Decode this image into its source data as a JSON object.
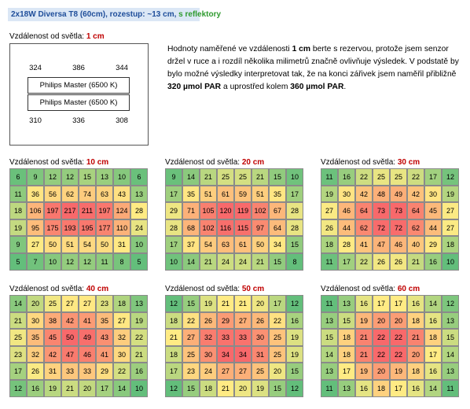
{
  "header": {
    "title": "2x18W Diversa T8 (60cm), rozestup: ~13 cm,",
    "title_tag": "s reflektory"
  },
  "diagram": {
    "label": "Vzdálenost od světla: ",
    "distance": "1 cm",
    "top": [
      324,
      386,
      344
    ],
    "lamps": [
      "Philips Master (6500 K)",
      "Philips Master (6500 K)"
    ],
    "bottom": [
      310,
      336,
      308
    ]
  },
  "note": {
    "parts": [
      {
        "text": "Hodnoty naměřené ve vzdálenosti ",
        "bold": false
      },
      {
        "text": "1 cm",
        "bold": true
      },
      {
        "text": " berte s rezervou, protože jsem senzor držel v ruce a i rozdíl několika milimetrů značně ovlivňuje výsledek. V podstatě by bylo možné výsledky interpretovat tak, že na konci zářivek jsem naměřil přibližně ",
        "bold": false
      },
      {
        "text": "320 µmol PAR",
        "bold": true
      },
      {
        "text": " a uprostřed kolem ",
        "bold": false
      },
      {
        "text": "360 µmol PAR",
        "bold": true
      },
      {
        "text": ".",
        "bold": false
      }
    ]
  },
  "color_scale": [
    "#63be7b",
    "#ffeb84",
    "#f8696b"
  ],
  "grids": [
    {
      "label": "Vzdálenost od světla: ",
      "distance": "10 cm",
      "rows": [
        [
          6,
          9,
          12,
          12,
          15,
          13,
          10,
          6
        ],
        [
          11,
          36,
          56,
          62,
          74,
          63,
          43,
          13
        ],
        [
          18,
          106,
          197,
          217,
          211,
          197,
          124,
          28
        ],
        [
          19,
          95,
          175,
          193,
          195,
          177,
          110,
          24
        ],
        [
          9,
          27,
          50,
          51,
          54,
          50,
          31,
          10
        ],
        [
          5,
          7,
          10,
          12,
          12,
          11,
          8,
          5
        ]
      ]
    },
    {
      "label": "Vzdálenost od světla: ",
      "distance": "20 cm",
      "rows": [
        [
          9,
          14,
          21,
          25,
          25,
          21,
          15,
          10
        ],
        [
          17,
          35,
          51,
          61,
          59,
          51,
          35,
          17
        ],
        [
          29,
          71,
          105,
          120,
          119,
          102,
          67,
          28
        ],
        [
          28,
          68,
          102,
          116,
          115,
          97,
          64,
          28
        ],
        [
          17,
          37,
          54,
          63,
          61,
          50,
          34,
          15
        ],
        [
          10,
          14,
          21,
          24,
          24,
          21,
          15,
          8
        ]
      ]
    },
    {
      "label": "Vzdálenost od světla: ",
      "distance": "30 cm",
      "rows": [
        [
          11,
          16,
          22,
          25,
          25,
          22,
          17,
          12
        ],
        [
          19,
          30,
          42,
          48,
          49,
          42,
          30,
          19
        ],
        [
          27,
          46,
          64,
          73,
          73,
          64,
          45,
          27
        ],
        [
          26,
          44,
          62,
          72,
          72,
          62,
          44,
          27
        ],
        [
          18,
          28,
          41,
          47,
          46,
          40,
          29,
          18
        ],
        [
          11,
          17,
          22,
          26,
          26,
          21,
          16,
          10
        ]
      ]
    },
    {
      "label": "Vzdálenost od světla: ",
      "distance": "40 cm",
      "rows": [
        [
          14,
          20,
          25,
          27,
          27,
          23,
          18,
          13
        ],
        [
          21,
          30,
          38,
          42,
          41,
          35,
          27,
          19
        ],
        [
          25,
          35,
          45,
          50,
          49,
          43,
          32,
          22
        ],
        [
          23,
          32,
          42,
          47,
          46,
          41,
          30,
          21
        ],
        [
          17,
          26,
          31,
          33,
          33,
          29,
          22,
          16
        ],
        [
          12,
          16,
          19,
          21,
          20,
          17,
          14,
          10
        ]
      ]
    },
    {
      "label": "Vzdálenost od světla: ",
      "distance": "50 cm",
      "rows": [
        [
          12,
          15,
          19,
          21,
          21,
          20,
          17,
          12
        ],
        [
          18,
          22,
          26,
          29,
          27,
          26,
          22,
          16
        ],
        [
          21,
          27,
          32,
          33,
          33,
          30,
          25,
          19
        ],
        [
          18,
          25,
          30,
          34,
          34,
          31,
          25,
          19
        ],
        [
          17,
          23,
          24,
          27,
          27,
          25,
          20,
          15
        ],
        [
          12,
          15,
          18,
          21,
          20,
          19,
          15,
          12
        ]
      ]
    },
    {
      "label": "Vzdálenost od světla: ",
      "distance": "60 cm",
      "rows": [
        [
          11,
          13,
          16,
          17,
          17,
          16,
          14,
          12
        ],
        [
          13,
          15,
          19,
          20,
          20,
          18,
          16,
          13
        ],
        [
          15,
          18,
          21,
          22,
          22,
          21,
          18,
          15
        ],
        [
          14,
          18,
          21,
          22,
          22,
          20,
          17,
          14
        ],
        [
          13,
          17,
          19,
          20,
          19,
          18,
          16,
          13
        ],
        [
          11,
          13,
          16,
          18,
          17,
          16,
          14,
          11
        ]
      ]
    }
  ]
}
